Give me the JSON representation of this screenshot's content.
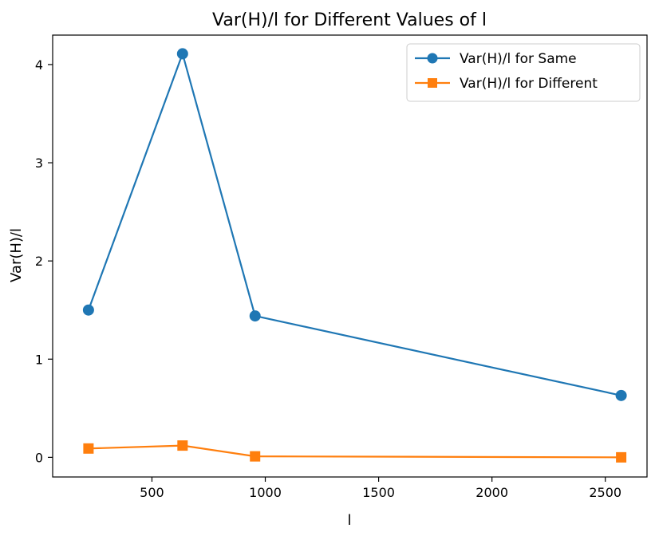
{
  "chart_data": {
    "type": "line",
    "title": "Var(H)/l for Different Values of l",
    "xlabel": "l",
    "ylabel": "Var(H)/l",
    "xlim": [
      62,
      2684
    ],
    "ylim": [
      -0.2,
      4.3
    ],
    "xticks": [
      500,
      1000,
      1500,
      2000,
      2500
    ],
    "yticks": [
      0,
      1,
      2,
      3,
      4
    ],
    "x": [
      220,
      635,
      955,
      2570
    ],
    "series": [
      {
        "name": "Var(H)/l for Same",
        "values": [
          1.5,
          4.11,
          1.44,
          0.63
        ],
        "color": "#1f77b4",
        "marker": "circle"
      },
      {
        "name": "Var(H)/l for Different",
        "values": [
          0.09,
          0.12,
          0.01,
          0.0
        ],
        "color": "#ff7f0e",
        "marker": "square"
      }
    ],
    "legend": "top-right",
    "grid": false
  }
}
